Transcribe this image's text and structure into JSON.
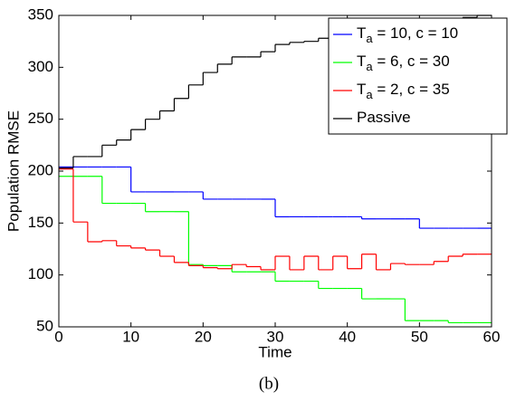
{
  "chart_data": {
    "type": "stairs",
    "caption": "(b)",
    "xlabel": "Time",
    "ylabel": "Population RMSE",
    "x": [
      0,
      2,
      4,
      6,
      8,
      10,
      12,
      14,
      16,
      18,
      20,
      22,
      24,
      26,
      28,
      30,
      32,
      34,
      36,
      38,
      40,
      42,
      44,
      46,
      48,
      50,
      52,
      54,
      56,
      58,
      60
    ],
    "xlim": [
      0,
      60
    ],
    "xticks": [
      0,
      10,
      20,
      30,
      40,
      50,
      60
    ],
    "ylim": [
      50,
      350
    ],
    "yticks": [
      50,
      100,
      150,
      200,
      250,
      300,
      350
    ],
    "legend": "upper right",
    "series": [
      {
        "name": [
          "T",
          "a",
          " = 10, c = 10"
        ],
        "color": "#0000ff",
        "values": [
          204,
          204,
          204,
          204,
          204,
          180,
          180,
          180,
          180,
          180,
          173,
          173,
          173,
          173,
          173,
          156,
          156,
          156,
          156,
          156,
          156,
          154,
          154,
          154,
          154,
          145,
          145,
          145,
          145,
          145,
          145
        ]
      },
      {
        "name": [
          "T",
          "a",
          " = 6, c = 30"
        ],
        "color": "#00ff00",
        "values": [
          195,
          195,
          195,
          169,
          169,
          169,
          161,
          161,
          161,
          110,
          109,
          109,
          103,
          103,
          103,
          94,
          94,
          94,
          87,
          87,
          87,
          77,
          77,
          77,
          56,
          56,
          56,
          54,
          54,
          54,
          54
        ]
      },
      {
        "name": [
          "T",
          "a",
          " = 2, c = 35"
        ],
        "color": "#ff0000",
        "values": [
          202,
          151,
          132,
          133,
          128,
          126,
          124,
          118,
          112,
          109,
          107,
          106,
          110,
          108,
          105,
          118,
          105,
          118,
          105,
          118,
          106,
          120,
          105,
          111,
          110,
          110,
          113,
          118,
          120,
          120,
          120
        ]
      },
      {
        "name": [
          "Passive"
        ],
        "color": "#000000",
        "values": [
          203,
          214,
          214,
          225,
          230,
          240,
          250,
          258,
          270,
          283,
          295,
          303,
          310,
          310,
          315,
          322,
          324,
          325,
          328,
          330,
          333,
          338,
          340,
          340,
          345,
          346,
          347,
          347,
          348,
          350,
          350
        ]
      }
    ]
  }
}
